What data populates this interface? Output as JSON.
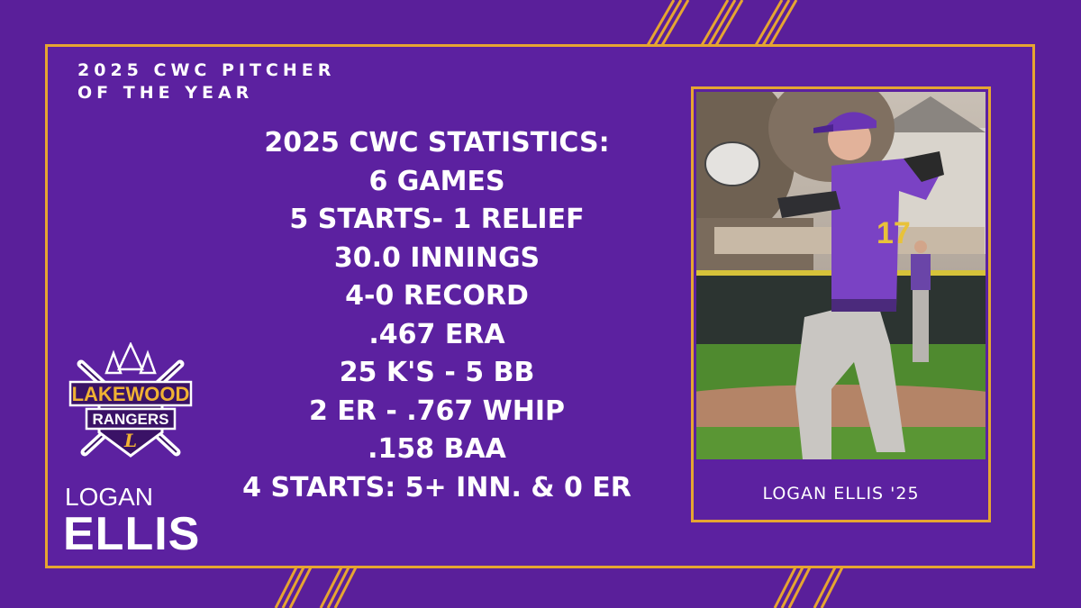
{
  "colors": {
    "background": "#5a1f9a",
    "panel": "#5c21a0",
    "accent_gold": "#e6a531",
    "text": "#ffffff"
  },
  "award": {
    "line1": "2025 CWC PITCHER",
    "line2": "OF THE YEAR"
  },
  "stats": [
    "2025 CWC STATISTICS:",
    "6 GAMES",
    "5 STARTS- 1 RELIEF",
    "30.0 INNINGS",
    "4-0 RECORD",
    ".467 ERA",
    "25 K'S - 5 BB",
    "2 ER - .767 WHIP",
    ".158 BAA",
    "4 STARTS: 5+ INN. & 0 ER"
  ],
  "logo": {
    "line1": "LAKEWOOD",
    "line2": "RANGERS",
    "monogram": "L",
    "icons": [
      "pine-trees-icon",
      "crossed-bats-icon"
    ]
  },
  "player": {
    "first_name": "LOGAN",
    "last_name": "ELLIS",
    "caption": "LOGAN ELLIS '25",
    "jersey_number": "17"
  }
}
